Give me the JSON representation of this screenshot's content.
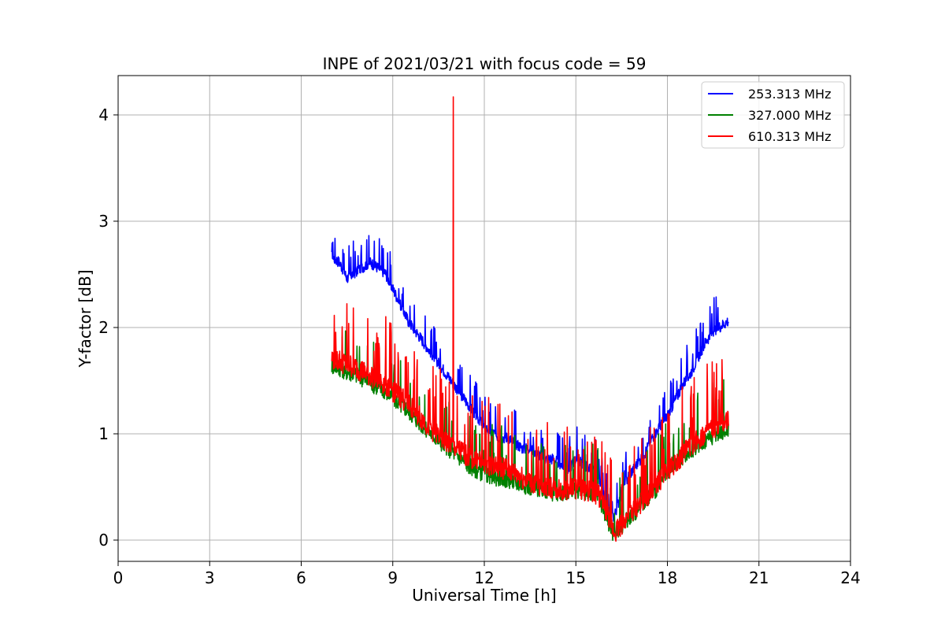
{
  "chart_data": {
    "type": "line",
    "title": "INPE of 2021/03/21 with focus code = 59",
    "xlabel": "Universal Time [h]",
    "ylabel": "Y-factor [dB]",
    "xlim": [
      0,
      24
    ],
    "ylim": [
      -0.2,
      4.37
    ],
    "xticks": [
      0,
      3,
      6,
      9,
      12,
      15,
      18,
      21,
      24
    ],
    "yticks": [
      0,
      1,
      2,
      3,
      4
    ],
    "grid": true,
    "legend_position": "top-right",
    "series": [
      {
        "name": "253.313 MHz",
        "color": "#0000ff",
        "x": [
          7.0,
          7.25,
          7.5,
          7.75,
          8.0,
          8.25,
          8.5,
          8.75,
          9.0,
          9.25,
          9.5,
          9.75,
          10.0,
          10.25,
          10.5,
          10.75,
          11.0,
          11.25,
          11.5,
          11.75,
          12.0,
          12.25,
          12.5,
          12.75,
          13.0,
          13.25,
          13.5,
          13.75,
          14.0,
          14.25,
          14.5,
          14.75,
          15.0,
          15.25,
          15.5,
          15.75,
          16.0,
          16.25,
          16.5,
          16.75,
          17.0,
          17.25,
          17.5,
          17.75,
          18.0,
          18.25,
          18.5,
          18.75,
          19.0,
          19.25,
          19.5,
          19.75,
          20.0
        ],
        "y": [
          2.65,
          2.6,
          2.45,
          2.5,
          2.55,
          2.6,
          2.55,
          2.5,
          2.35,
          2.2,
          2.05,
          1.95,
          1.85,
          1.75,
          1.65,
          1.55,
          1.45,
          1.35,
          1.25,
          1.15,
          1.05,
          1.0,
          0.95,
          0.95,
          0.9,
          0.85,
          0.85,
          0.8,
          0.75,
          0.75,
          0.7,
          0.65,
          0.75,
          0.7,
          0.65,
          0.6,
          0.3,
          0.2,
          0.45,
          0.6,
          0.7,
          0.8,
          0.95,
          1.05,
          1.15,
          1.3,
          1.45,
          1.55,
          1.7,
          1.85,
          1.95,
          2.0,
          2.05
        ],
        "spike_amp": 0.22
      },
      {
        "name": "327.000 MHz",
        "color": "#008000",
        "x": [
          7.0,
          7.25,
          7.5,
          7.75,
          8.0,
          8.25,
          8.5,
          8.75,
          9.0,
          9.25,
          9.5,
          9.75,
          10.0,
          10.25,
          10.5,
          10.75,
          11.0,
          11.25,
          11.5,
          11.75,
          12.0,
          12.25,
          12.5,
          12.75,
          13.0,
          13.25,
          13.5,
          13.75,
          14.0,
          14.25,
          14.5,
          14.75,
          15.0,
          15.25,
          15.5,
          15.75,
          16.0,
          16.25,
          16.5,
          16.75,
          17.0,
          17.25,
          17.5,
          17.75,
          18.0,
          18.25,
          18.5,
          18.75,
          19.0,
          19.25,
          19.5,
          19.75,
          20.0
        ],
        "y": [
          1.62,
          1.6,
          1.56,
          1.54,
          1.5,
          1.46,
          1.42,
          1.38,
          1.32,
          1.25,
          1.2,
          1.12,
          1.05,
          0.98,
          0.92,
          0.86,
          0.8,
          0.74,
          0.68,
          0.64,
          0.6,
          0.58,
          0.56,
          0.55,
          0.52,
          0.5,
          0.48,
          0.46,
          0.44,
          0.42,
          0.42,
          0.44,
          0.45,
          0.44,
          0.42,
          0.38,
          0.2,
          0.02,
          0.1,
          0.2,
          0.25,
          0.35,
          0.42,
          0.5,
          0.6,
          0.68,
          0.75,
          0.82,
          0.88,
          0.92,
          0.96,
          1.0,
          1.02
        ],
        "spike_amp": 0.35
      },
      {
        "name": "610.313 MHz",
        "color": "#ff0000",
        "x": [
          7.0,
          7.25,
          7.5,
          7.75,
          8.0,
          8.25,
          8.5,
          8.75,
          9.0,
          9.25,
          9.5,
          9.75,
          10.0,
          10.25,
          10.5,
          10.75,
          11.0,
          11.25,
          11.5,
          11.75,
          12.0,
          12.25,
          12.5,
          12.75,
          13.0,
          13.25,
          13.5,
          13.75,
          14.0,
          14.25,
          14.5,
          14.75,
          15.0,
          15.25,
          15.5,
          15.75,
          16.0,
          16.25,
          16.5,
          16.75,
          17.0,
          17.25,
          17.5,
          17.75,
          18.0,
          18.25,
          18.5,
          18.75,
          19.0,
          19.25,
          19.5,
          19.75,
          20.0
        ],
        "y": [
          1.68,
          1.66,
          1.62,
          1.6,
          1.56,
          1.52,
          1.48,
          1.44,
          1.38,
          1.32,
          1.26,
          1.18,
          1.1,
          1.02,
          0.96,
          0.9,
          0.85,
          0.8,
          0.76,
          0.72,
          0.7,
          0.68,
          0.66,
          0.64,
          0.6,
          0.56,
          0.52,
          0.5,
          0.48,
          0.46,
          0.45,
          0.46,
          0.46,
          0.45,
          0.44,
          0.4,
          0.25,
          0.05,
          0.12,
          0.22,
          0.28,
          0.36,
          0.45,
          0.54,
          0.62,
          0.7,
          0.78,
          0.86,
          0.92,
          0.98,
          1.02,
          1.06,
          1.1
        ],
        "spike_amp": 0.45,
        "outlier": {
          "x": 10.98,
          "y": 4.17
        }
      }
    ]
  }
}
